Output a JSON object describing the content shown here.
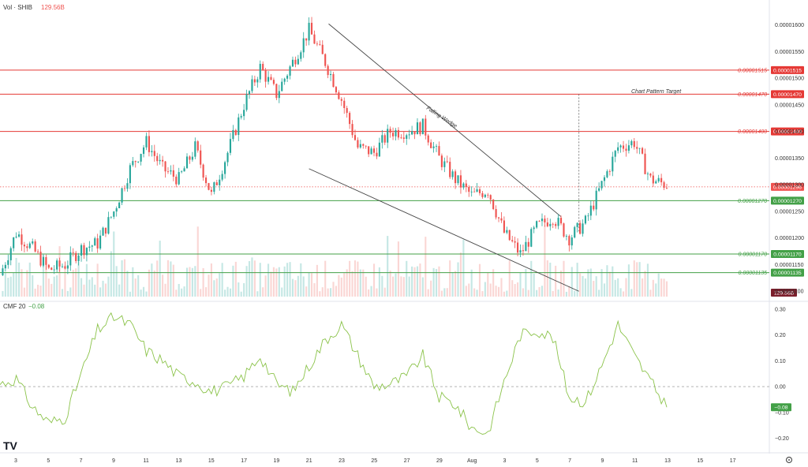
{
  "header": {
    "vol_label": "Vol · SHIB",
    "vol_value": "129.56B",
    "cmf_label": "CMF 20",
    "cmf_value": "−0.08"
  },
  "colors": {
    "up": "#26a69a",
    "down": "#ef5350",
    "resistance": "#e53935",
    "support": "#43a047",
    "cmf_line": "#8bc34a",
    "wedge": "#444444",
    "badge_dark": "#7b1e2b"
  },
  "annotations": {
    "wedge_label": "Falling Wedge",
    "target_label": "Chart Pattern Target"
  },
  "chart_data": [
    {
      "type": "candlestick",
      "title": "",
      "ylim": [
        1.09e-05,
        1.62e-05
      ],
      "y_ticks": [
        "0.00001100",
        "0.00001150",
        "0.00001200",
        "0.00001250",
        "0.00001300",
        "0.00001350",
        "0.00001400",
        "0.00001450",
        "0.00001500",
        "0.00001550",
        "0.00001600"
      ],
      "x_ticks": [
        "3",
        "5",
        "7",
        "9",
        "11",
        "13",
        "15",
        "17",
        "19",
        "21",
        "23",
        "25",
        "27",
        "29",
        "Aug",
        "3",
        "5",
        "7",
        "9",
        "11",
        "13",
        "15",
        "17"
      ],
      "levels": [
        {
          "label": "0.00001515",
          "badge": "0.00001515",
          "value": 1.515e-05,
          "kind": "resistance"
        },
        {
          "label": "0.00001470",
          "badge": "0.00001470",
          "value": 1.47e-05,
          "kind": "resistance"
        },
        {
          "label": "0.00001400",
          "badge": "0.00001400",
          "value": 1.4e-05,
          "kind": "resistance"
        },
        {
          "label": "0.00001270",
          "badge": "0.00001270",
          "value": 1.27e-05,
          "kind": "support"
        },
        {
          "label": "0.00001170",
          "badge": "0.00001170",
          "value": 1.17e-05,
          "kind": "support"
        },
        {
          "label": "0.00001135",
          "badge": "0.00001135",
          "value": 1.135e-05,
          "kind": "support"
        }
      ],
      "last_price": {
        "value": 1.296e-05,
        "label": "0.00001296"
      },
      "volume_badge": "129.56B",
      "close_path": [
        {
          "x": "Jul 2",
          "y": 1.13e-05
        },
        {
          "x": "Jul 3",
          "y": 1.21e-05
        },
        {
          "x": "Jul 4",
          "y": 1.18e-05
        },
        {
          "x": "Jul 5",
          "y": 1.14e-05
        },
        {
          "x": "Jul 6",
          "y": 1.15e-05
        },
        {
          "x": "Jul 7",
          "y": 1.18e-05
        },
        {
          "x": "Jul 8",
          "y": 1.19e-05
        },
        {
          "x": "Jul 9",
          "y": 1.25e-05
        },
        {
          "x": "Jul 10",
          "y": 1.33e-05
        },
        {
          "x": "Jul 11",
          "y": 1.38e-05
        },
        {
          "x": "Jul 12",
          "y": 1.33e-05
        },
        {
          "x": "Jul 13",
          "y": 1.31e-05
        },
        {
          "x": "Jul 14",
          "y": 1.37e-05
        },
        {
          "x": "Jul 15",
          "y": 1.28e-05
        },
        {
          "x": "Jul 16",
          "y": 1.36e-05
        },
        {
          "x": "Jul 17",
          "y": 1.45e-05
        },
        {
          "x": "Jul 18",
          "y": 1.52e-05
        },
        {
          "x": "Jul 19",
          "y": 1.47e-05
        },
        {
          "x": "Jul 20",
          "y": 1.53e-05
        },
        {
          "x": "Jul 21",
          "y": 1.59e-05
        },
        {
          "x": "Jul 22",
          "y": 1.53e-05
        },
        {
          "x": "Jul 23",
          "y": 1.46e-05
        },
        {
          "x": "Jul 24",
          "y": 1.37e-05
        },
        {
          "x": "Jul 25",
          "y": 1.36e-05
        },
        {
          "x": "Jul 26",
          "y": 1.4e-05
        },
        {
          "x": "Jul 27",
          "y": 1.4e-05
        },
        {
          "x": "Jul 28",
          "y": 1.41e-05
        },
        {
          "x": "Jul 29",
          "y": 1.35e-05
        },
        {
          "x": "Jul 30",
          "y": 1.31e-05
        },
        {
          "x": "Jul 31",
          "y": 1.28e-05
        },
        {
          "x": "Aug 1",
          "y": 1.29e-05
        },
        {
          "x": "Aug 2",
          "y": 1.21e-05
        },
        {
          "x": "Aug 3",
          "y": 1.17e-05
        },
        {
          "x": "Aug 4",
          "y": 1.22e-05
        },
        {
          "x": "Aug 5",
          "y": 1.24e-05
        },
        {
          "x": "Aug 6",
          "y": 1.2e-05
        },
        {
          "x": "Aug 7",
          "y": 1.23e-05
        },
        {
          "x": "Aug 8",
          "y": 1.3e-05
        },
        {
          "x": "Aug 9",
          "y": 1.37e-05
        },
        {
          "x": "Aug 10",
          "y": 1.38e-05
        },
        {
          "x": "Aug 11",
          "y": 1.31e-05
        },
        {
          "x": "Aug 12",
          "y": 1.3e-05
        }
      ]
    },
    {
      "type": "line",
      "title": "",
      "ylim": [
        -0.22,
        0.3
      ],
      "y_ticks": [
        "0.30",
        "0.20",
        "0.10",
        "0.00",
        "−0.10",
        "−0.20"
      ],
      "series": [
        {
          "name": "CMF 20",
          "points": [
            {
              "x": "Jul 2",
              "y": 0.01
            },
            {
              "x": "Jul 3",
              "y": 0.03
            },
            {
              "x": "Jul 4",
              "y": -0.08
            },
            {
              "x": "Jul 5",
              "y": -0.14
            },
            {
              "x": "Jul 6",
              "y": -0.12
            },
            {
              "x": "Jul 7",
              "y": 0.05
            },
            {
              "x": "Jul 8",
              "y": 0.22
            },
            {
              "x": "Jul 9",
              "y": 0.27
            },
            {
              "x": "Jul 10",
              "y": 0.24
            },
            {
              "x": "Jul 11",
              "y": 0.14
            },
            {
              "x": "Jul 12",
              "y": 0.1
            },
            {
              "x": "Jul 13",
              "y": 0.04
            },
            {
              "x": "Jul 14",
              "y": 0.02
            },
            {
              "x": "Jul 15",
              "y": -0.02
            },
            {
              "x": "Jul 16",
              "y": 0.0
            },
            {
              "x": "Jul 17",
              "y": 0.04
            },
            {
              "x": "Jul 18",
              "y": 0.12
            },
            {
              "x": "Jul 19",
              "y": 0.01
            },
            {
              "x": "Jul 20",
              "y": -0.02
            },
            {
              "x": "Jul 21",
              "y": 0.08
            },
            {
              "x": "Jul 22",
              "y": 0.18
            },
            {
              "x": "Jul 23",
              "y": 0.24
            },
            {
              "x": "Jul 24",
              "y": 0.12
            },
            {
              "x": "Jul 25",
              "y": 0.0
            },
            {
              "x": "Jul 26",
              "y": 0.01
            },
            {
              "x": "Jul 27",
              "y": 0.04
            },
            {
              "x": "Jul 28",
              "y": 0.12
            },
            {
              "x": "Jul 29",
              "y": -0.04
            },
            {
              "x": "Jul 30",
              "y": -0.07
            },
            {
              "x": "Jul 31",
              "y": -0.16
            },
            {
              "x": "Aug 1",
              "y": -0.18
            },
            {
              "x": "Aug 2",
              "y": 0.02
            },
            {
              "x": "Aug 3",
              "y": 0.2
            },
            {
              "x": "Aug 4",
              "y": 0.22
            },
            {
              "x": "Aug 5",
              "y": 0.19
            },
            {
              "x": "Aug 6",
              "y": -0.04
            },
            {
              "x": "Aug 7",
              "y": -0.06
            },
            {
              "x": "Aug 8",
              "y": 0.08
            },
            {
              "x": "Aug 9",
              "y": 0.24
            },
            {
              "x": "Aug 10",
              "y": 0.12
            },
            {
              "x": "Aug 11",
              "y": 0.02
            },
            {
              "x": "Aug 12",
              "y": -0.08
            }
          ]
        }
      ],
      "zero_line": true
    }
  ]
}
